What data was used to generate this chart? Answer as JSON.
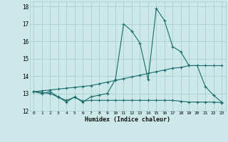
{
  "x": [
    0,
    1,
    2,
    3,
    4,
    5,
    6,
    7,
    8,
    9,
    10,
    11,
    12,
    13,
    14,
    15,
    16,
    17,
    18,
    19,
    20,
    21,
    22,
    23
  ],
  "line1": [
    13.1,
    13.0,
    13.1,
    12.8,
    12.5,
    12.8,
    12.5,
    12.8,
    12.9,
    13.0,
    13.8,
    17.0,
    16.6,
    15.9,
    13.8,
    17.9,
    17.2,
    15.7,
    15.4,
    14.6,
    14.6,
    13.4,
    12.9,
    12.5
  ],
  "line2": [
    13.1,
    13.15,
    13.2,
    13.25,
    13.3,
    13.35,
    13.4,
    13.45,
    13.55,
    13.65,
    13.75,
    13.85,
    13.95,
    14.05,
    14.15,
    14.25,
    14.35,
    14.45,
    14.5,
    14.6,
    14.6,
    14.6,
    14.6,
    14.6
  ],
  "line3": [
    13.1,
    13.05,
    13.0,
    12.78,
    12.6,
    12.78,
    12.56,
    12.6,
    12.6,
    12.6,
    12.6,
    12.6,
    12.6,
    12.6,
    12.6,
    12.6,
    12.6,
    12.6,
    12.55,
    12.5,
    12.5,
    12.5,
    12.5,
    12.47
  ],
  "line_color": "#1a6b6b",
  "bg_color": "#cce8e8",
  "grid_color": "#a8cece",
  "xlabel": "Humidex (Indice chaleur)",
  "ylabel_ticks": [
    12,
    13,
    14,
    15,
    16,
    17,
    18
  ],
  "xlim": [
    -0.5,
    23.5
  ],
  "ylim": [
    12.0,
    18.3
  ],
  "xticks": [
    0,
    1,
    2,
    3,
    4,
    5,
    6,
    7,
    8,
    9,
    10,
    11,
    12,
    13,
    14,
    15,
    16,
    17,
    18,
    19,
    20,
    21,
    22,
    23
  ]
}
